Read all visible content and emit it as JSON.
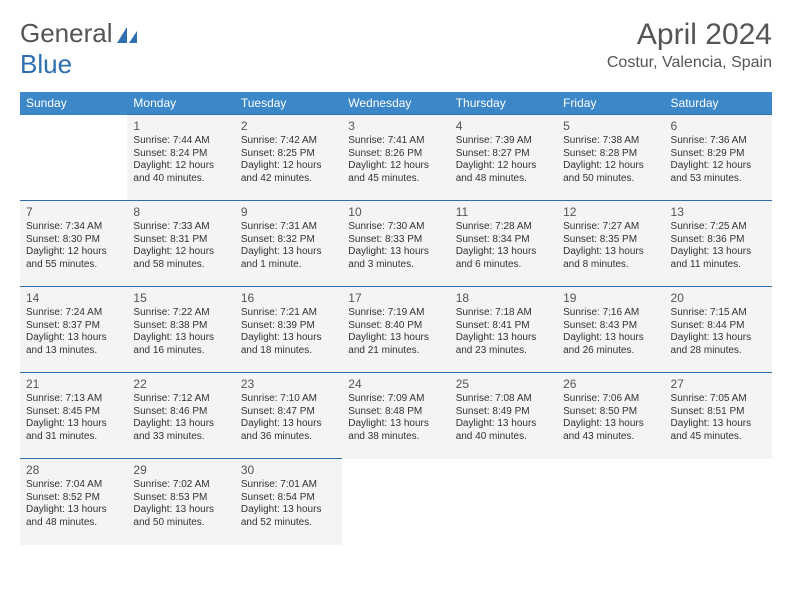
{
  "logo": {
    "general": "General",
    "blue": "Blue"
  },
  "title": {
    "month": "April 2024",
    "location": "Costur, Valencia, Spain"
  },
  "colors": {
    "header_bg": "#3b87c8",
    "header_text": "#ffffff",
    "border": "#2d6fb0",
    "cell_bg": "#f4f4f4",
    "logo_blue": "#2d6fb0",
    "text": "#333333"
  },
  "weekdays": [
    "Sunday",
    "Monday",
    "Tuesday",
    "Wednesday",
    "Thursday",
    "Friday",
    "Saturday"
  ],
  "weeks": [
    [
      null,
      {
        "d": "1",
        "sr": "Sunrise: 7:44 AM",
        "ss": "Sunset: 8:24 PM",
        "dl1": "Daylight: 12 hours",
        "dl2": "and 40 minutes."
      },
      {
        "d": "2",
        "sr": "Sunrise: 7:42 AM",
        "ss": "Sunset: 8:25 PM",
        "dl1": "Daylight: 12 hours",
        "dl2": "and 42 minutes."
      },
      {
        "d": "3",
        "sr": "Sunrise: 7:41 AM",
        "ss": "Sunset: 8:26 PM",
        "dl1": "Daylight: 12 hours",
        "dl2": "and 45 minutes."
      },
      {
        "d": "4",
        "sr": "Sunrise: 7:39 AM",
        "ss": "Sunset: 8:27 PM",
        "dl1": "Daylight: 12 hours",
        "dl2": "and 48 minutes."
      },
      {
        "d": "5",
        "sr": "Sunrise: 7:38 AM",
        "ss": "Sunset: 8:28 PM",
        "dl1": "Daylight: 12 hours",
        "dl2": "and 50 minutes."
      },
      {
        "d": "6",
        "sr": "Sunrise: 7:36 AM",
        "ss": "Sunset: 8:29 PM",
        "dl1": "Daylight: 12 hours",
        "dl2": "and 53 minutes."
      }
    ],
    [
      {
        "d": "7",
        "sr": "Sunrise: 7:34 AM",
        "ss": "Sunset: 8:30 PM",
        "dl1": "Daylight: 12 hours",
        "dl2": "and 55 minutes."
      },
      {
        "d": "8",
        "sr": "Sunrise: 7:33 AM",
        "ss": "Sunset: 8:31 PM",
        "dl1": "Daylight: 12 hours",
        "dl2": "and 58 minutes."
      },
      {
        "d": "9",
        "sr": "Sunrise: 7:31 AM",
        "ss": "Sunset: 8:32 PM",
        "dl1": "Daylight: 13 hours",
        "dl2": "and 1 minute."
      },
      {
        "d": "10",
        "sr": "Sunrise: 7:30 AM",
        "ss": "Sunset: 8:33 PM",
        "dl1": "Daylight: 13 hours",
        "dl2": "and 3 minutes."
      },
      {
        "d": "11",
        "sr": "Sunrise: 7:28 AM",
        "ss": "Sunset: 8:34 PM",
        "dl1": "Daylight: 13 hours",
        "dl2": "and 6 minutes."
      },
      {
        "d": "12",
        "sr": "Sunrise: 7:27 AM",
        "ss": "Sunset: 8:35 PM",
        "dl1": "Daylight: 13 hours",
        "dl2": "and 8 minutes."
      },
      {
        "d": "13",
        "sr": "Sunrise: 7:25 AM",
        "ss": "Sunset: 8:36 PM",
        "dl1": "Daylight: 13 hours",
        "dl2": "and 11 minutes."
      }
    ],
    [
      {
        "d": "14",
        "sr": "Sunrise: 7:24 AM",
        "ss": "Sunset: 8:37 PM",
        "dl1": "Daylight: 13 hours",
        "dl2": "and 13 minutes."
      },
      {
        "d": "15",
        "sr": "Sunrise: 7:22 AM",
        "ss": "Sunset: 8:38 PM",
        "dl1": "Daylight: 13 hours",
        "dl2": "and 16 minutes."
      },
      {
        "d": "16",
        "sr": "Sunrise: 7:21 AM",
        "ss": "Sunset: 8:39 PM",
        "dl1": "Daylight: 13 hours",
        "dl2": "and 18 minutes."
      },
      {
        "d": "17",
        "sr": "Sunrise: 7:19 AM",
        "ss": "Sunset: 8:40 PM",
        "dl1": "Daylight: 13 hours",
        "dl2": "and 21 minutes."
      },
      {
        "d": "18",
        "sr": "Sunrise: 7:18 AM",
        "ss": "Sunset: 8:41 PM",
        "dl1": "Daylight: 13 hours",
        "dl2": "and 23 minutes."
      },
      {
        "d": "19",
        "sr": "Sunrise: 7:16 AM",
        "ss": "Sunset: 8:43 PM",
        "dl1": "Daylight: 13 hours",
        "dl2": "and 26 minutes."
      },
      {
        "d": "20",
        "sr": "Sunrise: 7:15 AM",
        "ss": "Sunset: 8:44 PM",
        "dl1": "Daylight: 13 hours",
        "dl2": "and 28 minutes."
      }
    ],
    [
      {
        "d": "21",
        "sr": "Sunrise: 7:13 AM",
        "ss": "Sunset: 8:45 PM",
        "dl1": "Daylight: 13 hours",
        "dl2": "and 31 minutes."
      },
      {
        "d": "22",
        "sr": "Sunrise: 7:12 AM",
        "ss": "Sunset: 8:46 PM",
        "dl1": "Daylight: 13 hours",
        "dl2": "and 33 minutes."
      },
      {
        "d": "23",
        "sr": "Sunrise: 7:10 AM",
        "ss": "Sunset: 8:47 PM",
        "dl1": "Daylight: 13 hours",
        "dl2": "and 36 minutes."
      },
      {
        "d": "24",
        "sr": "Sunrise: 7:09 AM",
        "ss": "Sunset: 8:48 PM",
        "dl1": "Daylight: 13 hours",
        "dl2": "and 38 minutes."
      },
      {
        "d": "25",
        "sr": "Sunrise: 7:08 AM",
        "ss": "Sunset: 8:49 PM",
        "dl1": "Daylight: 13 hours",
        "dl2": "and 40 minutes."
      },
      {
        "d": "26",
        "sr": "Sunrise: 7:06 AM",
        "ss": "Sunset: 8:50 PM",
        "dl1": "Daylight: 13 hours",
        "dl2": "and 43 minutes."
      },
      {
        "d": "27",
        "sr": "Sunrise: 7:05 AM",
        "ss": "Sunset: 8:51 PM",
        "dl1": "Daylight: 13 hours",
        "dl2": "and 45 minutes."
      }
    ],
    [
      {
        "d": "28",
        "sr": "Sunrise: 7:04 AM",
        "ss": "Sunset: 8:52 PM",
        "dl1": "Daylight: 13 hours",
        "dl2": "and 48 minutes."
      },
      {
        "d": "29",
        "sr": "Sunrise: 7:02 AM",
        "ss": "Sunset: 8:53 PM",
        "dl1": "Daylight: 13 hours",
        "dl2": "and 50 minutes."
      },
      {
        "d": "30",
        "sr": "Sunrise: 7:01 AM",
        "ss": "Sunset: 8:54 PM",
        "dl1": "Daylight: 13 hours",
        "dl2": "and 52 minutes."
      },
      null,
      null,
      null,
      null
    ]
  ]
}
